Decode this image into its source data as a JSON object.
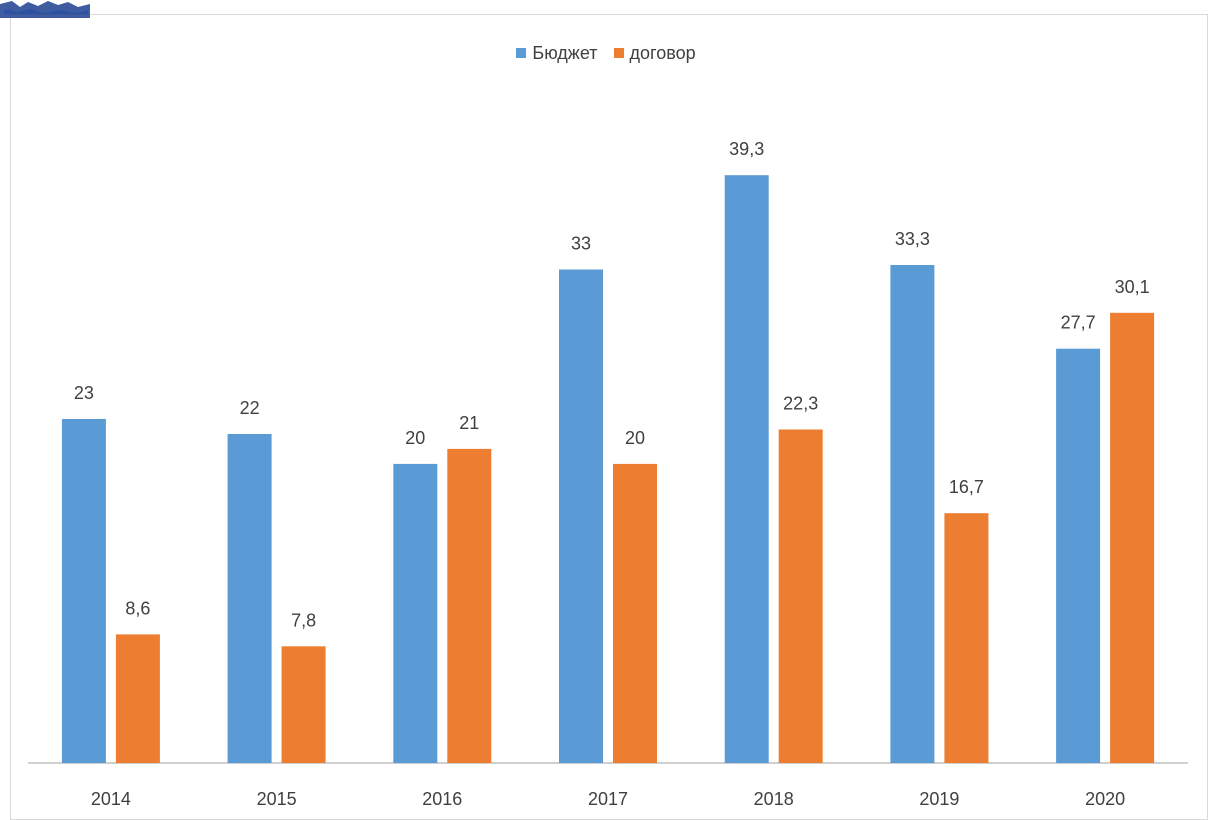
{
  "chart_data": {
    "type": "bar",
    "categories": [
      "2014",
      "2015",
      "2016",
      "2017",
      "2018",
      "2019",
      "2020"
    ],
    "series": [
      {
        "name": "Бюджет",
        "color": "#5b9bd5",
        "values": [
          23,
          22,
          20,
          33,
          39.3,
          33.3,
          27.7
        ],
        "labels": [
          "23",
          "22",
          "20",
          "33",
          "39,3",
          "33,3",
          "27,7"
        ]
      },
      {
        "name": "договор",
        "color": "#ed7d31",
        "values": [
          8.6,
          7.8,
          21,
          20,
          22.3,
          16.7,
          30.1
        ],
        "labels": [
          "8,6",
          "7,8",
          "21",
          "20",
          "22,3",
          "16,7",
          "30,1"
        ]
      }
    ],
    "title": "",
    "xlabel": "",
    "ylabel": "",
    "ylim": [
      0,
      45
    ],
    "grid": false,
    "legend_position": "top-center",
    "y_axis_visible": false
  },
  "colors": {
    "axis": "#bfbfbf",
    "text": "#404040",
    "logo": "#1f3f8f"
  },
  "icons": {
    "logo": "logo-mark-icon"
  }
}
